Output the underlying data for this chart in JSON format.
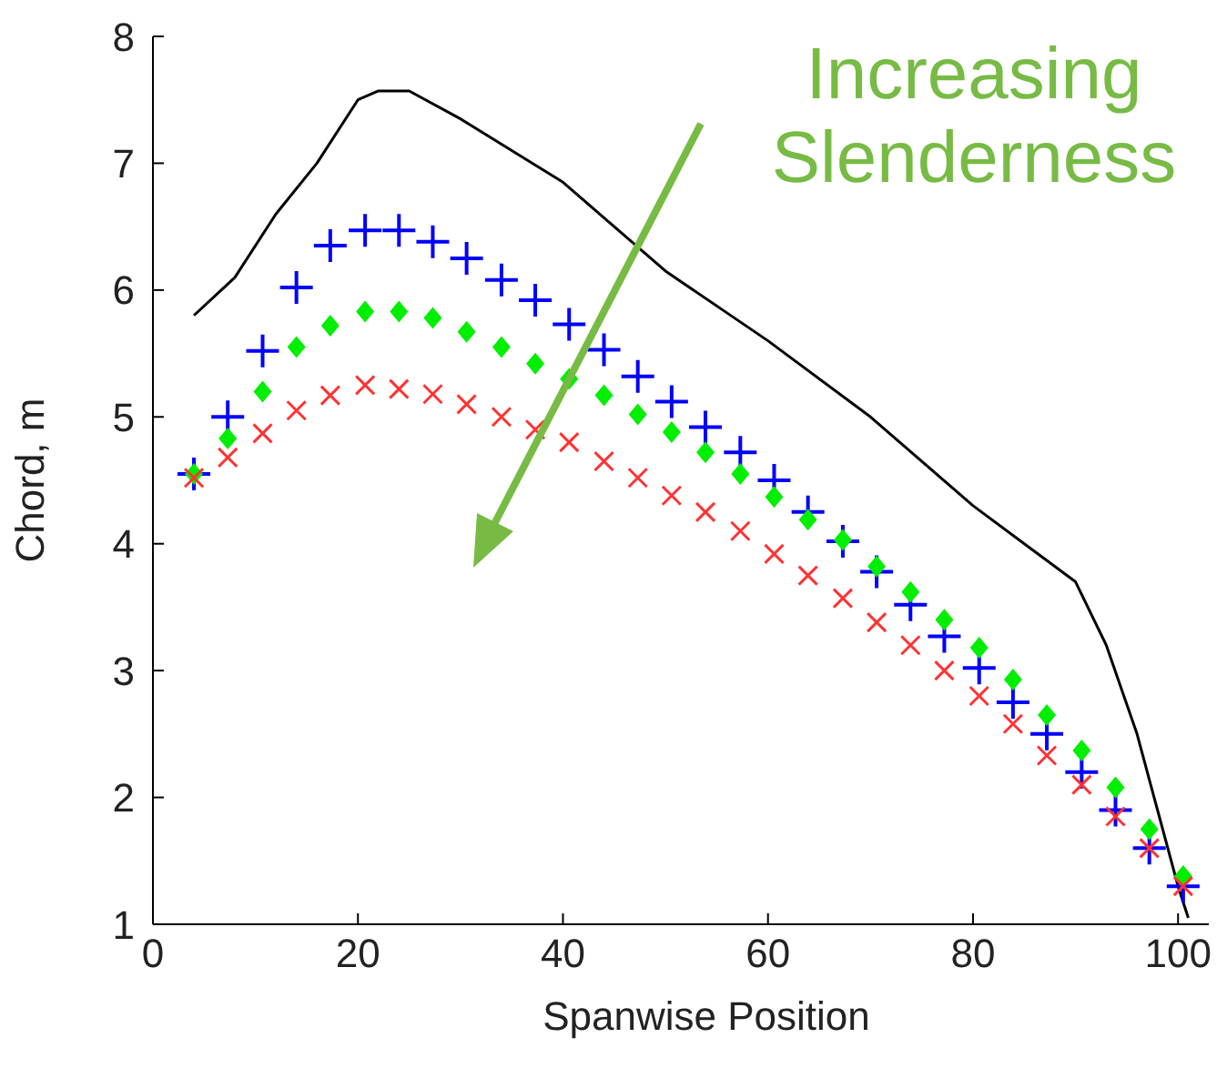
{
  "chart_data": {
    "type": "scatter",
    "xlabel": "Spanwise Position",
    "ylabel": "Chord, m",
    "x": [
      4.0,
      7.3,
      10.7,
      14.0,
      17.3,
      20.7,
      24.0,
      27.3,
      30.6,
      34.0,
      37.3,
      40.6,
      44.0,
      47.3,
      50.6,
      53.9,
      57.3,
      60.6,
      63.9,
      67.3,
      70.6,
      73.9,
      77.2,
      80.6,
      83.9,
      87.2,
      90.6,
      93.9,
      97.2,
      100.5
    ],
    "series": [
      {
        "type": "line",
        "color": "#000000",
        "marker": "none",
        "x": [
          4,
          8,
          12,
          16,
          20,
          22,
          25,
          30,
          40,
          50,
          60,
          70,
          80,
          85,
          90,
          93,
          96,
          98,
          100,
          101
        ],
        "values": [
          5.8,
          6.1,
          6.6,
          7.0,
          7.5,
          7.57,
          7.57,
          7.35,
          6.85,
          6.15,
          5.6,
          5.0,
          4.3,
          4.0,
          3.7,
          3.2,
          2.5,
          1.9,
          1.3,
          1.05
        ]
      },
      {
        "color": "#0000ff",
        "marker": "cross",
        "values": [
          4.55,
          5.0,
          5.52,
          6.02,
          6.35,
          6.47,
          6.47,
          6.38,
          6.25,
          6.08,
          5.92,
          5.73,
          5.53,
          5.32,
          5.12,
          4.92,
          4.72,
          4.5,
          4.25,
          4.02,
          3.78,
          3.52,
          3.27,
          3.02,
          2.75,
          2.5,
          2.2,
          1.9,
          1.6,
          1.3
        ]
      },
      {
        "color": "#00ee00",
        "marker": "diamond",
        "values": [
          4.55,
          4.83,
          5.2,
          5.55,
          5.72,
          5.83,
          5.83,
          5.78,
          5.67,
          5.55,
          5.42,
          5.3,
          5.17,
          5.02,
          4.88,
          4.72,
          4.55,
          4.37,
          4.19,
          4.03,
          3.82,
          3.62,
          3.4,
          3.18,
          2.93,
          2.65,
          2.37,
          2.08,
          1.75,
          1.38
        ]
      },
      {
        "color": "#ff3333",
        "marker": "x",
        "values": [
          4.52,
          4.68,
          4.87,
          5.05,
          5.17,
          5.25,
          5.22,
          5.18,
          5.1,
          5.0,
          4.9,
          4.8,
          4.65,
          4.52,
          4.38,
          4.25,
          4.1,
          3.92,
          3.75,
          3.57,
          3.38,
          3.2,
          3.0,
          2.8,
          2.58,
          2.33,
          2.1,
          1.85,
          1.6,
          1.3
        ]
      }
    ],
    "xlim": [
      0,
      103
    ],
    "xticks": [
      0,
      20,
      40,
      60,
      80,
      100
    ],
    "ylim": [
      1,
      8
    ],
    "yticks": [
      1,
      2,
      3,
      4,
      5,
      6,
      7,
      8
    ],
    "grid": false,
    "legend": false,
    "annotations": [
      "Increasing Slenderness"
    ]
  }
}
